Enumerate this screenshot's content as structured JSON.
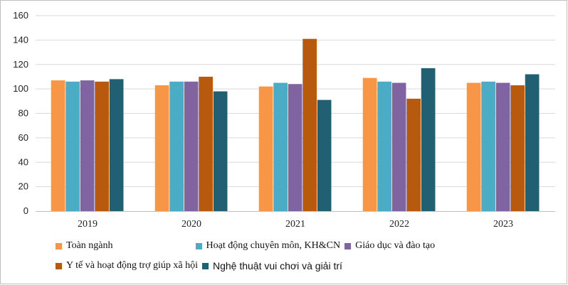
{
  "chart_data": {
    "type": "bar",
    "title": "",
    "xlabel": "",
    "ylabel": "",
    "ylim": [
      0,
      160
    ],
    "yticks": [
      0,
      20,
      40,
      60,
      80,
      100,
      120,
      140,
      160
    ],
    "grid": true,
    "legend_position": "bottom",
    "categories": [
      "2019",
      "2020",
      "2021",
      "2022",
      "2023"
    ],
    "series": [
      {
        "name": "Toàn ngành",
        "color": "#F79646",
        "values": [
          107,
          103,
          102,
          109,
          105
        ]
      },
      {
        "name": "Hoạt động chuyên môn, KH&CN",
        "color": "#4BACC6",
        "values": [
          106,
          106,
          105,
          106,
          106
        ]
      },
      {
        "name": "Giáo dục và đào tạo",
        "color": "#8064A2",
        "values": [
          107,
          106,
          104,
          105,
          105
        ]
      },
      {
        "name": "Y tế và hoạt động trợ giúp xã hội",
        "color": "#B85A0D",
        "values": [
          106,
          110,
          141,
          92,
          103
        ]
      },
      {
        "name": "Nghệ thuật vui chơi và giải trí",
        "color": "#215F73",
        "values": [
          108,
          98,
          91,
          117,
          112
        ]
      }
    ]
  }
}
